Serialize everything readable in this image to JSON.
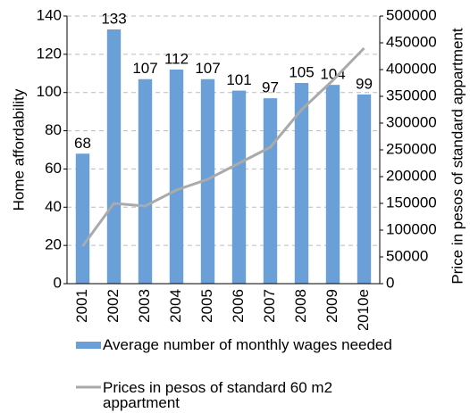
{
  "chart_data": {
    "type": "bar",
    "categories": [
      "2001",
      "2002",
      "2003",
      "2004",
      "2005",
      "2006",
      "2007",
      "2008",
      "2009",
      "2010e"
    ],
    "y_label": "Home affordability",
    "y2_label": "Price in pesos of standard appartment",
    "series": [
      {
        "name": "Average number of monthly wages needed",
        "type": "bar",
        "color": "#6a9fd8",
        "values": [
          68,
          133,
          107,
          112,
          107,
          101,
          97,
          105,
          104,
          99
        ]
      },
      {
        "name": "Prices in pesos of standard 60 m2 appartment",
        "type": "line",
        "axis": "y2",
        "color": "#aaaaaa",
        "values": [
          70000,
          150000,
          145000,
          175000,
          195000,
          225000,
          255000,
          325000,
          380000,
          440000
        ]
      }
    ],
    "ylim": [
      0,
      140
    ],
    "yticks": [
      0,
      20,
      40,
      60,
      80,
      100,
      120,
      140
    ],
    "y2lim": [
      0,
      500000
    ],
    "y2ticks": [
      0,
      50000,
      100000,
      150000,
      200000,
      250000,
      300000,
      350000,
      400000,
      450000,
      500000
    ],
    "grid": true
  }
}
